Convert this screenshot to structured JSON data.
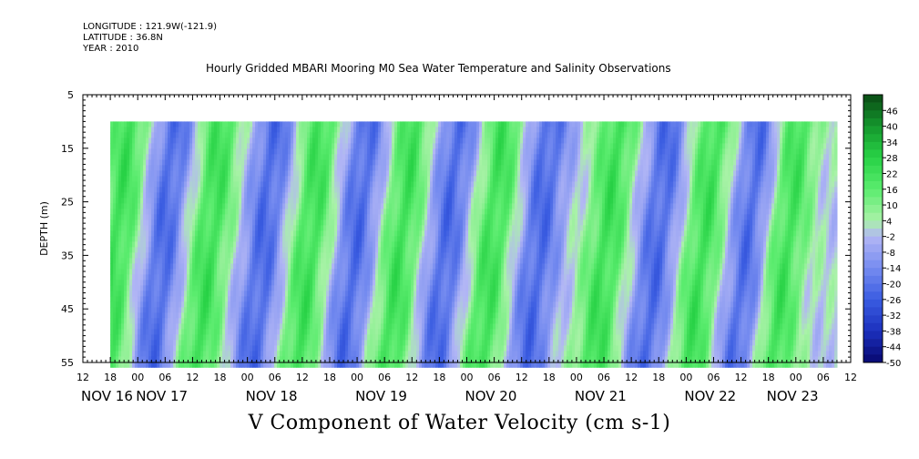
{
  "header": {
    "longitude": "LONGITUDE : 121.9W(-121.9)",
    "latitude": "LATITUDE : 36.8N",
    "year": "YEAR : 2010",
    "title": "Hourly Gridded MBARI Mooring M0 Sea Water Temperature and Salinity Observations"
  },
  "caption": "V Component of Water Velocity (cm s-1)",
  "chart_data": {
    "type": "heatmap",
    "title": "Hourly Gridded MBARI Mooring M0 Sea Water Temperature and Salinity Observations",
    "xlabel": "",
    "ylabel": "DEPTH (m)",
    "colorbar_label": "V Component of Water Velocity (cm s-1)",
    "x_unit": "hours since NOV 16 12:00",
    "xlim": [
      0,
      168
    ],
    "data_x_range": [
      6,
      165
    ],
    "x_hour_ticks": [
      "12",
      "18",
      "00",
      "06",
      "12",
      "18",
      "00",
      "06",
      "12",
      "18",
      "00",
      "06",
      "12",
      "18",
      "00",
      "06",
      "12",
      "18",
      "00",
      "06",
      "12",
      "18",
      "00",
      "06",
      "12",
      "18",
      "00",
      "06",
      "12"
    ],
    "x_date_labels": [
      {
        "label": "NOV 16",
        "hour": 0
      },
      {
        "label": "NOV 17",
        "hour": 12
      },
      {
        "label": "NOV 18",
        "hour": 36
      },
      {
        "label": "NOV 19",
        "hour": 60
      },
      {
        "label": "NOV 20",
        "hour": 84
      },
      {
        "label": "NOV 21",
        "hour": 108
      },
      {
        "label": "NOV 22",
        "hour": 132
      },
      {
        "label": "NOV 23",
        "hour": 150
      }
    ],
    "ylim": [
      5,
      55
    ],
    "y_inverted": true,
    "y_ticks": [
      5,
      15,
      25,
      35,
      45,
      55
    ],
    "data_y_range": [
      10,
      55
    ],
    "colorbar_levels": [
      46,
      40,
      34,
      28,
      22,
      16,
      10,
      4,
      -2,
      -8,
      -14,
      -20,
      -26,
      -32,
      -38,
      -44,
      -50
    ],
    "color_range": [
      -50,
      52
    ],
    "legend_position": "right",
    "approx_bands": [
      {
        "center_hour": 10,
        "sign": 1
      },
      {
        "center_hour": 20,
        "sign": -1
      },
      {
        "center_hour": 30,
        "sign": 1
      },
      {
        "center_hour": 42,
        "sign": -1
      },
      {
        "center_hour": 52,
        "sign": 1
      },
      {
        "center_hour": 62,
        "sign": -1
      },
      {
        "center_hour": 72,
        "sign": 1
      },
      {
        "center_hour": 82,
        "sign": -1
      },
      {
        "center_hour": 92,
        "sign": 1
      },
      {
        "center_hour": 102,
        "sign": -1
      },
      {
        "center_hour": 117,
        "sign": 1
      },
      {
        "center_hour": 128,
        "sign": -1
      },
      {
        "center_hour": 138,
        "sign": 1
      },
      {
        "center_hour": 148,
        "sign": -1
      },
      {
        "center_hour": 156,
        "sign": 1
      }
    ]
  },
  "colors": {
    "green": "#22dd44",
    "light_green": "#a8f0a8",
    "light_blue": "#a8a8f0",
    "blue": "#3355dd",
    "dark_green": "#0a4a14",
    "dark_blue": "#070870"
  }
}
